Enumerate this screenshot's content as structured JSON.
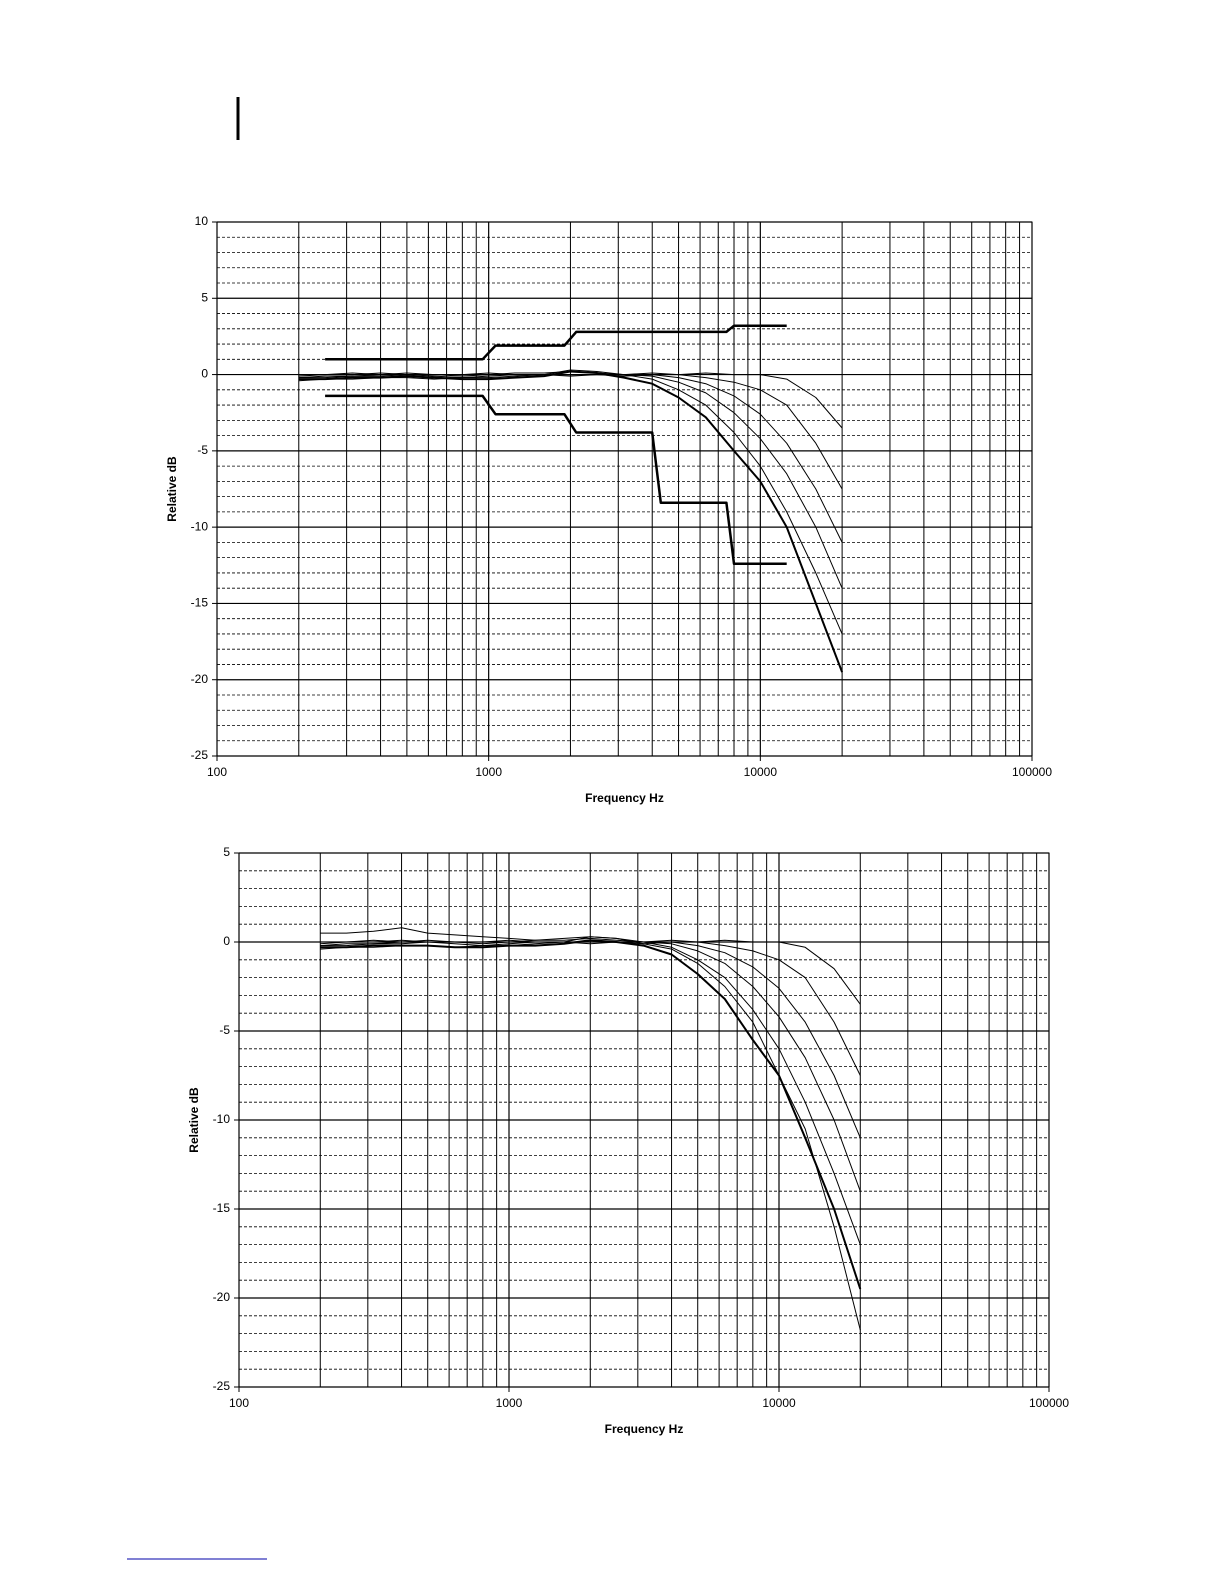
{
  "chart_data": [
    {
      "type": "line",
      "xlabel": "Frequency Hz",
      "ylabel": "Relative dB",
      "xscale": "log",
      "xlim": [
        100,
        100000
      ],
      "xticks": [
        100,
        1000,
        10000,
        100000
      ],
      "ylim": [
        -25,
        10
      ],
      "yticks": [
        10,
        5,
        0,
        -5,
        -10,
        -15,
        -20,
        -25
      ],
      "grid": true,
      "xgrid_minor": [
        200,
        300,
        400,
        500,
        600,
        700,
        800,
        900,
        2000,
        3000,
        4000,
        5000,
        6000,
        7000,
        8000,
        9000,
        20000,
        30000,
        40000,
        50000,
        60000,
        70000,
        80000,
        90000
      ],
      "ygrid_minor": [
        9,
        8,
        7,
        6,
        4,
        3,
        2,
        1,
        -1,
        -2,
        -3,
        -4,
        -6,
        -7,
        -8,
        -9,
        -11,
        -12,
        -13,
        -14,
        -16,
        -17,
        -18,
        -19,
        -21,
        -22,
        -23,
        -24
      ],
      "x": [
        200,
        250,
        315,
        400,
        500,
        630,
        800,
        1000,
        1250,
        1600,
        2000,
        2500,
        3150,
        4000,
        5000,
        6300,
        8000,
        10000,
        12500,
        16000,
        20000
      ],
      "series": [
        {
          "color": "#000000",
          "line_width": 2,
          "values": [
            -0.3,
            -0.3,
            -0.2,
            -0.2,
            -0.1,
            -0.2,
            -0.3,
            -0.3,
            -0.2,
            -0.1,
            0.2,
            0.1,
            -0.2,
            -0.6,
            -1.5,
            -2.8,
            -5,
            -7,
            -10,
            -15,
            -19.5
          ]
        },
        {
          "color": "#000000",
          "line_width": 1,
          "values": [
            -0.2,
            -0.1,
            -0.1,
            0,
            0,
            -0.1,
            -0.2,
            -0.2,
            -0.1,
            0,
            0.3,
            0.2,
            0,
            -0.3,
            -1,
            -2,
            -3.8,
            -6,
            -9,
            -13,
            -17
          ]
        },
        {
          "color": "#000000",
          "line_width": 1,
          "values": [
            0,
            0,
            0.1,
            0,
            0.1,
            0,
            -0.1,
            0,
            0.1,
            0.1,
            0.2,
            0.1,
            0,
            -0.1,
            -0.5,
            -1.2,
            -2.5,
            -4.2,
            -6.5,
            -10,
            -14
          ]
        },
        {
          "color": "#000000",
          "line_width": 1,
          "values": [
            -0.4,
            -0.3,
            -0.3,
            -0.2,
            -0.2,
            -0.3,
            -0.2,
            -0.1,
            0,
            0,
            0,
            0,
            -0.1,
            0,
            -0.2,
            -0.6,
            -1.4,
            -2.6,
            -4.5,
            -7.5,
            -11
          ]
        },
        {
          "color": "#000000",
          "line_width": 1,
          "values": [
            -0.1,
            0,
            0,
            0.1,
            0,
            0,
            0,
            0.1,
            0,
            0,
            -0.1,
            0,
            0,
            0.1,
            0,
            -0.2,
            -0.5,
            -1,
            -2,
            -4.5,
            -7.5
          ]
        },
        {
          "color": "#000000",
          "line_width": 1,
          "values": [
            -0.2,
            -0.2,
            -0.1,
            -0.1,
            0,
            0,
            0,
            0,
            0,
            0,
            0,
            0,
            0,
            0,
            0,
            0.1,
            0,
            0,
            -0.3,
            -1.5,
            -3.5
          ]
        },
        {
          "color": "#000000",
          "line_width": 2.5,
          "x": [
            250,
            950,
            1060,
            1900,
            2100,
            7500,
            8000,
            12500
          ],
          "values": [
            1,
            1,
            1.9,
            1.9,
            2.8,
            2.8,
            3.2,
            3.2
          ]
        },
        {
          "color": "#000000",
          "line_width": 2.5,
          "x": [
            250,
            950,
            1060,
            1900,
            2100,
            4000,
            4300,
            7500,
            8000,
            12500
          ],
          "values": [
            -1.4,
            -1.4,
            -2.6,
            -2.6,
            -3.8,
            -3.8,
            -8.4,
            -8.4,
            -12.4,
            -12.4
          ]
        }
      ]
    },
    {
      "type": "line",
      "xlabel": "Frequency Hz",
      "ylabel": "Relative dB",
      "xscale": "log",
      "xlim": [
        100,
        100000
      ],
      "xticks": [
        100,
        1000,
        10000,
        100000
      ],
      "ylim": [
        -25,
        5
      ],
      "yticks": [
        5,
        0,
        -5,
        -10,
        -15,
        -20,
        -25
      ],
      "grid": true,
      "xgrid_minor": [
        200,
        300,
        400,
        500,
        600,
        700,
        800,
        900,
        2000,
        3000,
        4000,
        5000,
        6000,
        7000,
        8000,
        9000,
        20000,
        30000,
        40000,
        50000,
        60000,
        70000,
        80000,
        90000
      ],
      "ygrid_minor": [
        4,
        3,
        2,
        1,
        -1,
        -2,
        -3,
        -4,
        -6,
        -7,
        -8,
        -9,
        -11,
        -12,
        -13,
        -14,
        -16,
        -17,
        -18,
        -19,
        -21,
        -22,
        -23,
        -24
      ],
      "x": [
        200,
        250,
        315,
        400,
        500,
        630,
        800,
        1000,
        1250,
        1600,
        2000,
        2500,
        3150,
        4000,
        5000,
        6300,
        8000,
        10000,
        12500,
        16000,
        20000
      ],
      "series": [
        {
          "color": "#000000",
          "line_width": 2,
          "values": [
            -0.3,
            -0.3,
            -0.2,
            -0.2,
            -0.2,
            -0.3,
            -0.3,
            -0.2,
            -0.2,
            -0.1,
            0.1,
            0,
            -0.2,
            -0.7,
            -1.8,
            -3.2,
            -5.5,
            -7.5,
            -11,
            -15,
            -19.5
          ]
        },
        {
          "color": "#000000",
          "line_width": 1,
          "values": [
            0.5,
            0.5,
            0.6,
            0.8,
            0.5,
            0.4,
            0.3,
            0.2,
            0.1,
            0.2,
            0.3,
            0.2,
            -0.1,
            -0.4,
            -1.2,
            -2.5,
            -4.5,
            -7.5,
            -10.5,
            -16,
            -21.8
          ]
        },
        {
          "color": "#000000",
          "line_width": 1,
          "values": [
            -0.2,
            -0.1,
            -0.1,
            0,
            0,
            -0.1,
            -0.2,
            -0.2,
            -0.1,
            0,
            0.3,
            0.2,
            0,
            -0.3,
            -1,
            -2,
            -3.8,
            -6,
            -9,
            -13,
            -17
          ]
        },
        {
          "color": "#000000",
          "line_width": 1,
          "values": [
            0,
            0,
            0.1,
            0,
            0.1,
            0,
            -0.1,
            0,
            0.1,
            0.1,
            0.2,
            0.1,
            0,
            -0.1,
            -0.5,
            -1.2,
            -2.5,
            -4.2,
            -6.5,
            -10,
            -14
          ]
        },
        {
          "color": "#000000",
          "line_width": 1,
          "values": [
            -0.4,
            -0.3,
            -0.3,
            -0.2,
            -0.2,
            -0.3,
            -0.2,
            -0.1,
            0,
            0,
            0,
            0,
            -0.1,
            0,
            -0.2,
            -0.6,
            -1.4,
            -2.6,
            -4.5,
            -7.5,
            -11
          ]
        },
        {
          "color": "#000000",
          "line_width": 1,
          "values": [
            -0.1,
            0,
            0,
            0.1,
            0,
            0,
            0,
            0.1,
            0,
            0,
            -0.1,
            0,
            0,
            0.1,
            0,
            -0.2,
            -0.5,
            -1,
            -2,
            -4.5,
            -7.5
          ]
        },
        {
          "color": "#000000",
          "line_width": 1,
          "values": [
            -0.2,
            -0.2,
            -0.1,
            -0.1,
            0,
            0,
            0,
            0,
            0,
            0,
            0,
            0,
            0,
            0,
            0,
            0.1,
            0,
            0,
            -0.3,
            -1.5,
            -3.5
          ]
        }
      ]
    }
  ]
}
